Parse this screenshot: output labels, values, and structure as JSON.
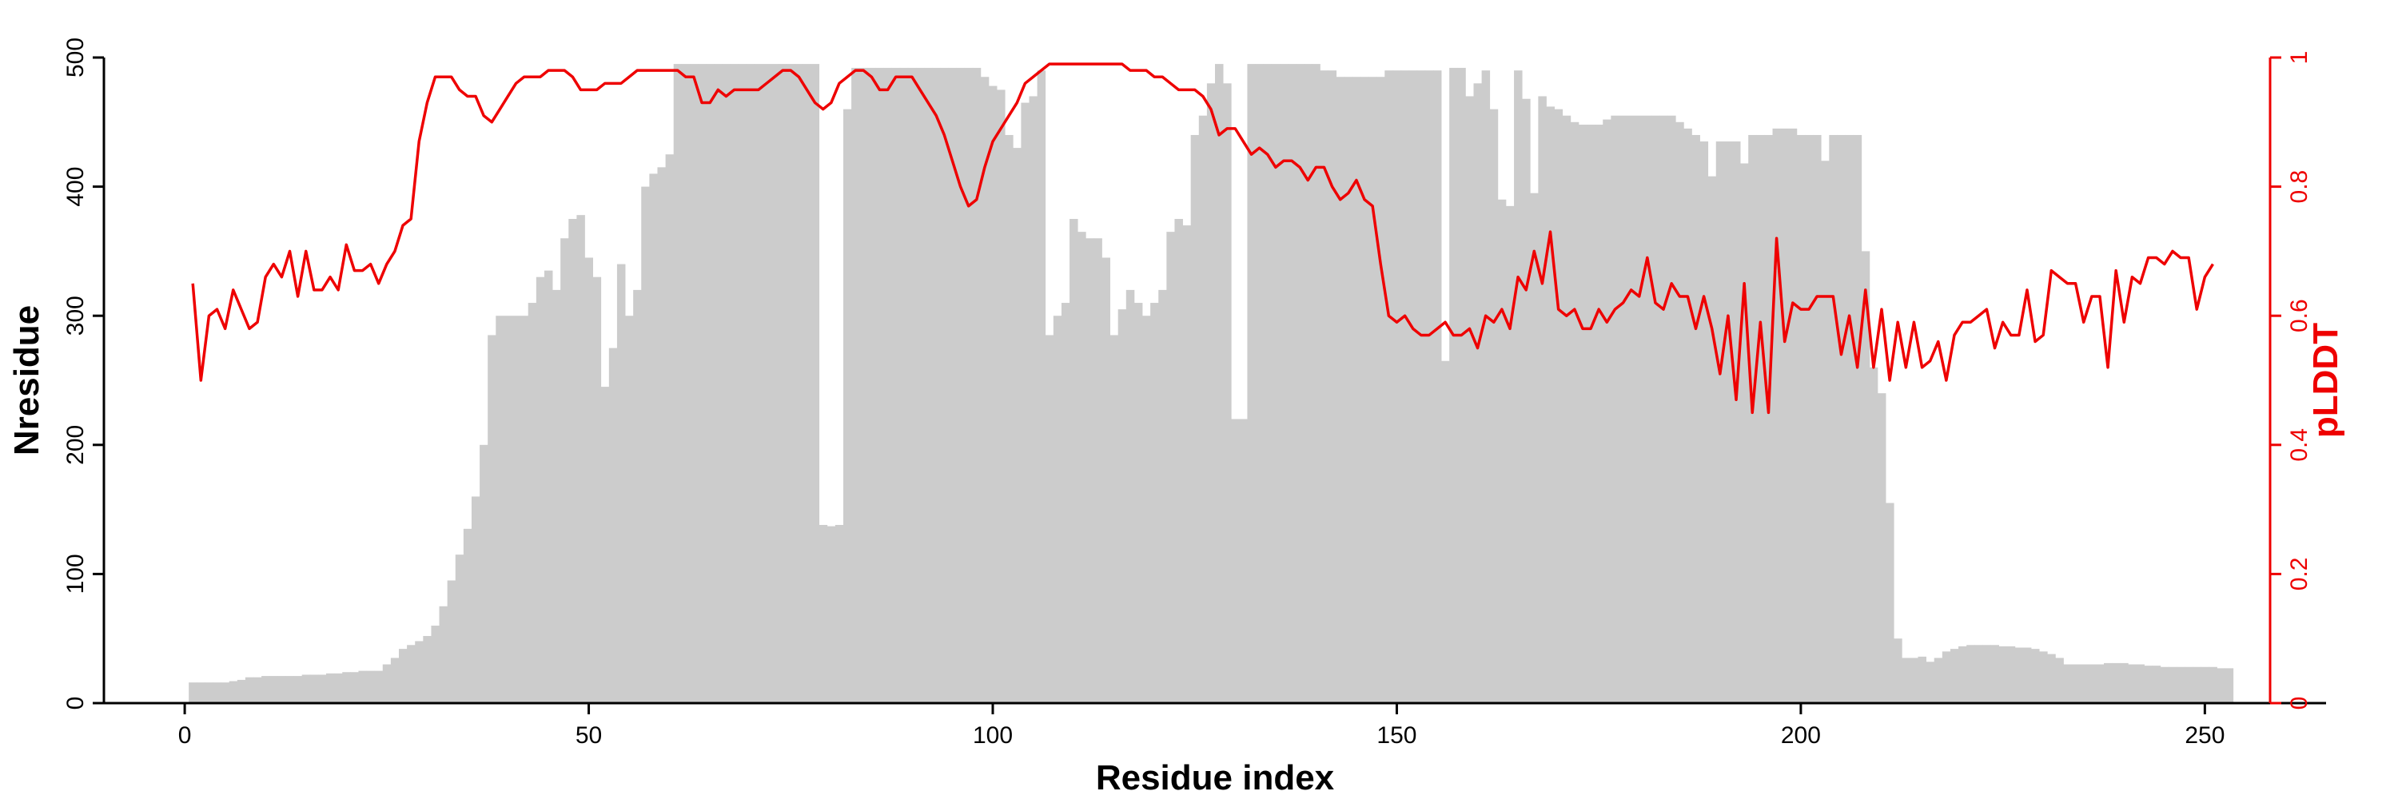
{
  "chart_data": {
    "type": "bar+line",
    "title": "",
    "xlabel": "Residue index",
    "ylabel_left": "Nresidue",
    "ylabel_right": "pLDDT",
    "xlim": [
      -10,
      265
    ],
    "ylim_left": [
      0,
      500
    ],
    "ylim_right": [
      0,
      1
    ],
    "x_ticks": [
      "0",
      "50",
      "100",
      "150",
      "200",
      "250"
    ],
    "y_left_ticks": [
      "0",
      "100",
      "200",
      "300",
      "400",
      "500"
    ],
    "y_right_ticks": [
      "0",
      "0.2",
      "0.4",
      "0.6",
      "0.8",
      "1"
    ],
    "grid": false,
    "legend": "none",
    "colors": {
      "bars": "#cccccc",
      "line": "#ee0000",
      "axis": "#000000",
      "right_axis": "#ee0000"
    },
    "series": [
      {
        "type": "bar",
        "axis": "left",
        "x_start": 1,
        "values": [
          16,
          16,
          16,
          16,
          16,
          17,
          18,
          20,
          20,
          21,
          21,
          21,
          21,
          21,
          22,
          22,
          22,
          23,
          23,
          24,
          24,
          25,
          25,
          25,
          30,
          35,
          42,
          45,
          48,
          52,
          60,
          75,
          95,
          115,
          135,
          160,
          200,
          285,
          300,
          300,
          300,
          300,
          310,
          330,
          335,
          320,
          360,
          375,
          378,
          345,
          330,
          245,
          275,
          340,
          300,
          320,
          400,
          410,
          415,
          425,
          495,
          495,
          495,
          495,
          495,
          495,
          495,
          495,
          495,
          495,
          495,
          495,
          495,
          495,
          495,
          495,
          495,
          495,
          138,
          137,
          138,
          460,
          492,
          492,
          492,
          492,
          492,
          492,
          492,
          492,
          492,
          492,
          492,
          492,
          492,
          492,
          492,
          492,
          485,
          478,
          475,
          440,
          430,
          465,
          470,
          490,
          285,
          300,
          310,
          375,
          365,
          360,
          360,
          345,
          285,
          305,
          320,
          310,
          300,
          310,
          320,
          365,
          375,
          370,
          440,
          455,
          480,
          495,
          480,
          220,
          220,
          495,
          495,
          495,
          495,
          495,
          495,
          495,
          495,
          495,
          490,
          490,
          485,
          485,
          485,
          485,
          485,
          485,
          490,
          490,
          490,
          490,
          490,
          490,
          490,
          265,
          492,
          492,
          470,
          480,
          490,
          460,
          390,
          385,
          490,
          468,
          395,
          470,
          462,
          460,
          455,
          450,
          448,
          448,
          448,
          452,
          455,
          455,
          455,
          455,
          455,
          455,
          455,
          455,
          450,
          445,
          440,
          435,
          408,
          435,
          435,
          435,
          418,
          440,
          440,
          440,
          445,
          445,
          445,
          440,
          440,
          440,
          420,
          440,
          440,
          440,
          440,
          350,
          260,
          240,
          155,
          50,
          35,
          35,
          36,
          32,
          35,
          40,
          42,
          44,
          45,
          45,
          45,
          45,
          44,
          44,
          43,
          43,
          42,
          40,
          38,
          35,
          30,
          30,
          30,
          30,
          30,
          31,
          31,
          31,
          30,
          30,
          29,
          29,
          28,
          28,
          28,
          28,
          28,
          28,
          28,
          27,
          27
        ]
      },
      {
        "type": "line",
        "axis": "right",
        "x_start": 1,
        "values": [
          0.65,
          0.5,
          0.6,
          0.61,
          0.58,
          0.64,
          0.61,
          0.58,
          0.59,
          0.66,
          0.68,
          0.66,
          0.7,
          0.63,
          0.7,
          0.64,
          0.64,
          0.66,
          0.64,
          0.71,
          0.67,
          0.67,
          0.68,
          0.65,
          0.68,
          0.7,
          0.74,
          0.75,
          0.87,
          0.93,
          0.97,
          0.97,
          0.97,
          0.95,
          0.94,
          0.94,
          0.91,
          0.9,
          0.92,
          0.94,
          0.96,
          0.97,
          0.97,
          0.97,
          0.98,
          0.98,
          0.98,
          0.97,
          0.95,
          0.95,
          0.95,
          0.96,
          0.96,
          0.96,
          0.97,
          0.98,
          0.98,
          0.98,
          0.98,
          0.98,
          0.98,
          0.97,
          0.97,
          0.93,
          0.93,
          0.95,
          0.94,
          0.95,
          0.95,
          0.95,
          0.95,
          0.96,
          0.97,
          0.98,
          0.98,
          0.97,
          0.95,
          0.93,
          0.92,
          0.93,
          0.96,
          0.97,
          0.98,
          0.98,
          0.97,
          0.95,
          0.95,
          0.97,
          0.97,
          0.97,
          0.95,
          0.93,
          0.91,
          0.88,
          0.84,
          0.8,
          0.77,
          0.78,
          0.83,
          0.87,
          0.89,
          0.91,
          0.93,
          0.96,
          0.97,
          0.98,
          0.99,
          0.99,
          0.99,
          0.99,
          0.99,
          0.99,
          0.99,
          0.99,
          0.99,
          0.99,
          0.98,
          0.98,
          0.98,
          0.97,
          0.97,
          0.96,
          0.95,
          0.95,
          0.95,
          0.94,
          0.92,
          0.88,
          0.89,
          0.89,
          0.87,
          0.85,
          0.86,
          0.85,
          0.83,
          0.84,
          0.84,
          0.83,
          0.81,
          0.83,
          0.83,
          0.8,
          0.78,
          0.79,
          0.81,
          0.78,
          0.77,
          0.68,
          0.6,
          0.59,
          0.6,
          0.58,
          0.57,
          0.57,
          0.58,
          0.59,
          0.57,
          0.57,
          0.58,
          0.55,
          0.6,
          0.59,
          0.61,
          0.58,
          0.66,
          0.64,
          0.7,
          0.65,
          0.73,
          0.61,
          0.6,
          0.61,
          0.58,
          0.58,
          0.61,
          0.59,
          0.61,
          0.62,
          0.64,
          0.63,
          0.69,
          0.62,
          0.61,
          0.65,
          0.63,
          0.63,
          0.58,
          0.63,
          0.58,
          0.51,
          0.6,
          0.47,
          0.65,
          0.45,
          0.59,
          0.45,
          0.72,
          0.56,
          0.62,
          0.61,
          0.61,
          0.63,
          0.63,
          0.63,
          0.54,
          0.6,
          0.52,
          0.64,
          0.52,
          0.61,
          0.5,
          0.59,
          0.52,
          0.59,
          0.52,
          0.53,
          0.56,
          0.5,
          0.57,
          0.59,
          0.59,
          0.6,
          0.61,
          0.55,
          0.59,
          0.57,
          0.57,
          0.64,
          0.56,
          0.57,
          0.67,
          0.66,
          0.65,
          0.65,
          0.59,
          0.63,
          0.63,
          0.52,
          0.67,
          0.59,
          0.66,
          0.65,
          0.69,
          0.69,
          0.68,
          0.7,
          0.69,
          0.69,
          0.61,
          0.66,
          0.68
        ]
      }
    ]
  }
}
